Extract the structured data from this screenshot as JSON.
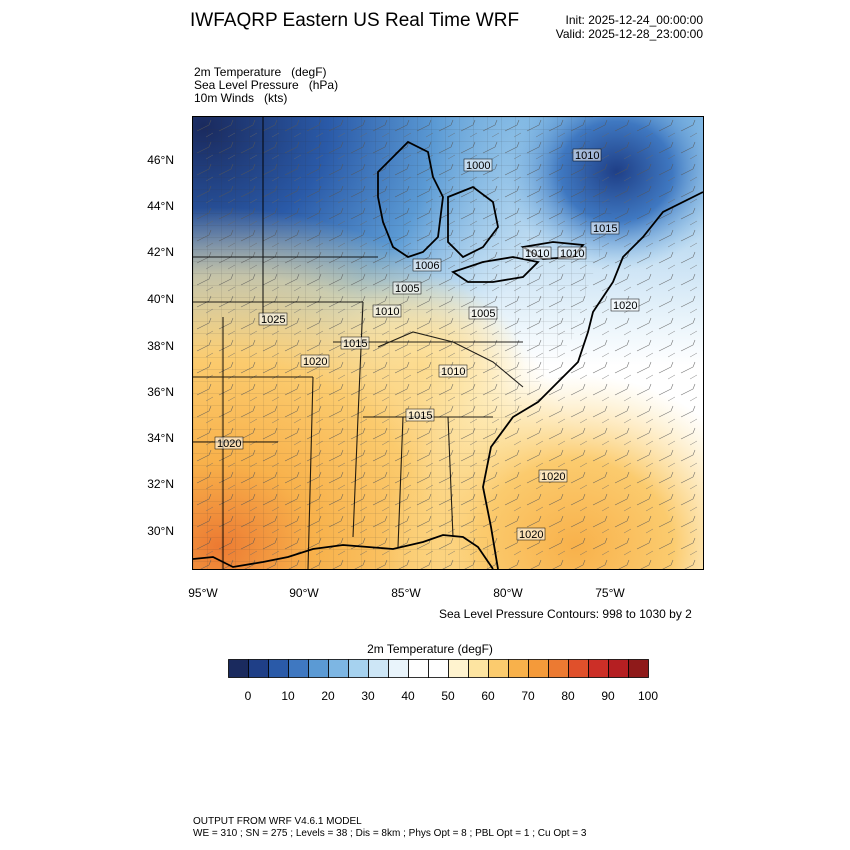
{
  "header": {
    "title": "IWFAQRP Eastern US Real Time WRF",
    "init": "Init: 2025-12-24_00:00:00",
    "valid": "Valid: 2025-12-28_23:00:00"
  },
  "fields": [
    {
      "name": "2m Temperature",
      "unit": "(degF)"
    },
    {
      "name": "Sea Level Pressure",
      "unit": "(hPa)"
    },
    {
      "name": "10m Winds",
      "unit": "(kts)"
    }
  ],
  "map": {
    "lat_labels": [
      "46°N",
      "44°N",
      "42°N",
      "40°N",
      "38°N",
      "36°N",
      "34°N",
      "32°N",
      "30°N"
    ],
    "lon_labels": [
      "95°W",
      "90°W",
      "85°W",
      "80°W",
      "75°W"
    ],
    "pressure_labels": [
      "1000",
      "1010",
      "1015",
      "1010",
      "1010",
      "1006",
      "1005",
      "1010",
      "1025",
      "1015",
      "1020",
      "1005",
      "1010",
      "1015",
      "1020",
      "1020",
      "1020",
      "1020"
    ],
    "contour_note": "Sea Level Pressure Contours: 998 to 1030 by 2"
  },
  "colorbar": {
    "title": "2m Temperature  (degF)",
    "labels": [
      "0",
      "10",
      "20",
      "30",
      "40",
      "50",
      "60",
      "70",
      "80",
      "90",
      "100"
    ],
    "colors": [
      "#1a2a5e",
      "#1f3f87",
      "#2a5aa8",
      "#3f78c1",
      "#5b9ad4",
      "#7db6e3",
      "#a6d2ef",
      "#cde6f6",
      "#e9f4fb",
      "#ffffff",
      "#ffffff",
      "#fff3cf",
      "#fde4a1",
      "#fbcb6e",
      "#f8b14b",
      "#f49a3a",
      "#ec7a32",
      "#e0502b",
      "#cc2f27",
      "#b51f22",
      "#8f1a1a"
    ]
  },
  "footer": {
    "line1": "OUTPUT FROM WRF V4.6.1 MODEL",
    "line2": "WE = 310 ; SN = 275 ; Levels = 38 ; Dis = 8km ; Phys Opt = 8 ; PBL Opt = 1 ; Cu Opt = 3"
  }
}
